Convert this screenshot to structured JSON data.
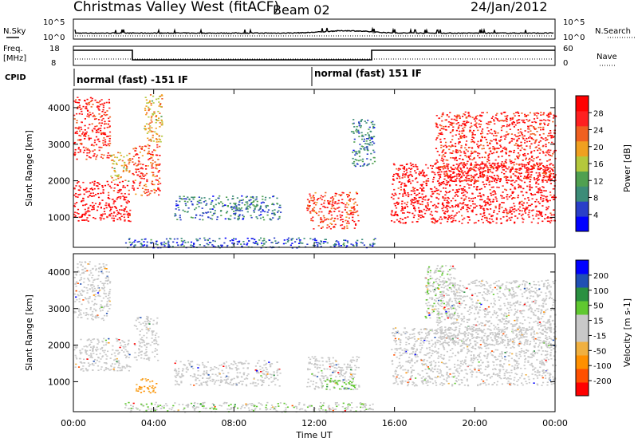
{
  "header": {
    "station": "Christmas Valley West (fitACF)",
    "beam": "Beam 02",
    "date": "24/Jan/2012"
  },
  "labels": {
    "nsky": "N.Sky",
    "nsearch": "N.Search",
    "freq_line1": "Freq.",
    "freq_line2": "[MHz]",
    "nave": "Nave",
    "cpid": "CPID",
    "cpid_left": "normal (fast) -151 IF",
    "cpid_right": "normal (fast) 151 IF"
  },
  "noise_axis": {
    "left_ticks": [
      "10^5",
      "10^0"
    ],
    "right_ticks": [
      "10^5",
      "10^0"
    ]
  },
  "freq_axis": {
    "left_ticks": [
      "18",
      "8"
    ],
    "right_ticks": [
      "60",
      "0"
    ]
  },
  "colors": {
    "power": [
      "#0000ff",
      "#2a3fc8",
      "#3c8c78",
      "#50a050",
      "#b4c83c",
      "#f0a020",
      "#f06020",
      "#ff2020",
      "#ff0000"
    ],
    "velocity": [
      "#ff0000",
      "#ff5000",
      "#ff9000",
      "#f0b040",
      "#c8c8c8",
      "#c8c8c8",
      "#60c830",
      "#2a9040",
      "#2050b4",
      "#0000ff"
    ]
  },
  "chart_data": [
    {
      "type": "heatmap",
      "panel": "power",
      "ylabel": "Slant Range [km]",
      "ylim": [
        180,
        4500
      ],
      "yticks": [
        "1000",
        "2000",
        "3000",
        "4000"
      ],
      "colorbar": {
        "label": "Power [dB]",
        "ticks": [
          "4",
          "8",
          "12",
          "16",
          "20",
          "24",
          "28"
        ],
        "range": [
          0,
          30
        ]
      },
      "regions": [
        {
          "t": [
            0.0,
            2.8
          ],
          "r": [
            900,
            2000
          ],
          "value": 28
        },
        {
          "t": [
            0.0,
            1.8
          ],
          "r": [
            2600,
            4300
          ],
          "value": 26
        },
        {
          "t": [
            1.8,
            2.8
          ],
          "r": [
            2000,
            2800
          ],
          "value": 18
        },
        {
          "t": [
            2.9,
            4.3
          ],
          "r": [
            1600,
            3000
          ],
          "value": 24
        },
        {
          "t": [
            3.5,
            4.4
          ],
          "r": [
            3000,
            4400
          ],
          "value": 18
        },
        {
          "t": [
            5.0,
            10.3
          ],
          "r": [
            950,
            1600
          ],
          "value": 8
        },
        {
          "t": [
            11.6,
            14.2
          ],
          "r": [
            700,
            1700
          ],
          "value": 24
        },
        {
          "t": [
            13.8,
            15.0
          ],
          "r": [
            2400,
            3700
          ],
          "value": 8
        },
        {
          "t": [
            15.8,
            24.0
          ],
          "r": [
            850,
            2500
          ],
          "value": 28
        },
        {
          "t": [
            18.0,
            24.0
          ],
          "r": [
            2000,
            3900
          ],
          "value": 26
        },
        {
          "t": [
            2.5,
            15.0
          ],
          "r": [
            180,
            450
          ],
          "value": 6
        }
      ]
    },
    {
      "type": "heatmap",
      "panel": "velocity",
      "xlabel": "Time UT",
      "ylabel": "Slant Range [km]",
      "ylim": [
        180,
        4500
      ],
      "yticks": [
        "1000",
        "2000",
        "3000",
        "4000"
      ],
      "xticks": [
        "00:00",
        "04:00",
        "08:00",
        "12:00",
        "16:00",
        "20:00",
        "00:00"
      ],
      "xlim": [
        0,
        24
      ],
      "colorbar": {
        "label": "Velocity [m s-1]",
        "ticks": [
          "-200",
          "-100",
          "-50",
          "-15",
          "15",
          "50",
          "100",
          "200"
        ],
        "range": [
          -250,
          250
        ]
      },
      "regions": [
        {
          "t": [
            0.0,
            2.8
          ],
          "r": [
            1300,
            2200
          ],
          "value": 0
        },
        {
          "t": [
            0.0,
            1.8
          ],
          "r": [
            2700,
            4300
          ],
          "value": 0
        },
        {
          "t": [
            3.0,
            4.2
          ],
          "r": [
            1600,
            2800
          ],
          "value": 0
        },
        {
          "t": [
            3.0,
            4.1
          ],
          "r": [
            700,
            1100
          ],
          "value": -100
        },
        {
          "t": [
            5.0,
            10.3
          ],
          "r": [
            900,
            1600
          ],
          "value": -20
        },
        {
          "t": [
            11.6,
            14.2
          ],
          "r": [
            800,
            1700
          ],
          "value": 0
        },
        {
          "t": [
            12.5,
            14.0
          ],
          "r": [
            800,
            1100
          ],
          "value": 60
        },
        {
          "t": [
            15.8,
            24.0
          ],
          "r": [
            900,
            2500
          ],
          "value": 0
        },
        {
          "t": [
            18.0,
            24.0
          ],
          "r": [
            2000,
            3800
          ],
          "value": 0
        },
        {
          "t": [
            17.5,
            19.0
          ],
          "r": [
            2700,
            4200
          ],
          "value": 40
        },
        {
          "t": [
            2.5,
            15.0
          ],
          "r": [
            180,
            450
          ],
          "value": 40
        }
      ]
    }
  ]
}
